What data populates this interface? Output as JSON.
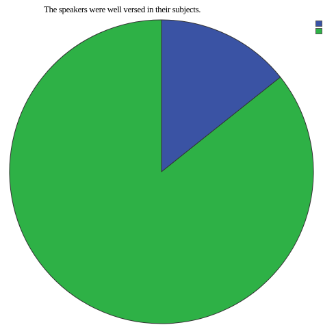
{
  "chart_data": {
    "type": "pie",
    "title": "The speakers were well versed in their subjects.",
    "slices": [
      {
        "value": 14.3,
        "color": "#3a53a4"
      },
      {
        "value": 85.7,
        "color": "#2eb146"
      }
    ],
    "legend": "top-right"
  }
}
